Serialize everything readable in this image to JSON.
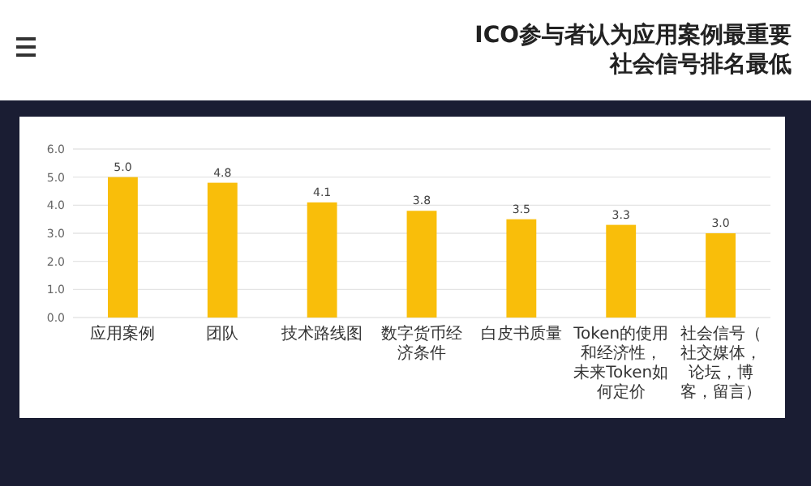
{
  "chart_data": {
    "type": "bar",
    "title": "ICO参与者认为应用案例最重要社会信号排名最低",
    "categories": [
      "应用案例",
      "团队",
      "技术路线图",
      "数字货币经济条件",
      "白皮书质量",
      "Token的使用和经济性，未来Token如何定价",
      "社会信号（社交媒体，论坛，博客，留言）"
    ],
    "values": [
      5.0,
      4.8,
      4.1,
      3.8,
      3.5,
      3.3,
      3.0
    ],
    "value_labels": [
      "5.0",
      "4.8",
      "4.1",
      "3.8",
      "3.5",
      "3.3",
      "3.0"
    ],
    "color": "#f9be0a",
    "ylim": [
      0,
      6
    ],
    "yticks": [
      {
        "value": 0,
        "label": "0.0"
      },
      {
        "value": 1,
        "label": "1.0"
      },
      {
        "value": 2,
        "label": "2.0"
      },
      {
        "value": 3,
        "label": "3.0"
      },
      {
        "value": 4,
        "label": "4.0"
      },
      {
        "value": 5,
        "label": "5.0"
      },
      {
        "value": 6,
        "label": "6.0"
      }
    ],
    "grid": "y"
  }
}
